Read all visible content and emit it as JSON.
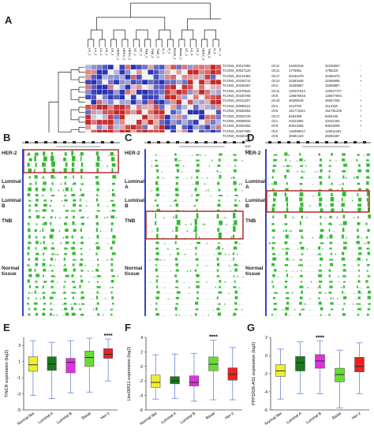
{
  "panels": {
    "A": "A",
    "B": "B",
    "C": "C",
    "D": "D",
    "E": "E",
    "F": "F",
    "G": "G"
  },
  "heatmap": {
    "column_labels": [
      "LA_1",
      "LA_2",
      "LA_3",
      "LB_1",
      "LB_2",
      "HER2_1",
      "HER2_2",
      "HER2_3",
      "NT_1",
      "NT_2",
      "TNB_1",
      "TNB_2",
      "TNB_3",
      "N_1",
      "N_2",
      "Basal_1",
      "Basal_2",
      "NT_3",
      "LA_4",
      "LB_3",
      "HER2_4",
      "TNB_4",
      "N_3",
      "NT_4",
      "LB_4",
      "HER2_5",
      "LA_5",
      "TNB_5",
      "N_4",
      "N_5"
    ],
    "rows": [
      {
        "id": "TCONS_00017650",
        "chr": "chr11",
        "start": "31026316",
        "end": "31030667",
        "strand": "-"
      },
      {
        "id": "TCONS_00027120",
        "chr": "chr11",
        "start": "1775961",
        "end": "1795220",
        "strand": "-"
      },
      {
        "id": "TCONS_00142481",
        "chr": "chr17",
        "start": "40432479",
        "end": "40450470",
        "strand": "+"
      },
      {
        "id": "TCONS_00236714",
        "chr": "chr12",
        "start": "32363446",
        "end": "32365695",
        "strand": "+"
      },
      {
        "id": "TCONS_00248467",
        "chr": "chr4",
        "start": "15295897",
        "end": "15309887",
        "strand": "-"
      },
      {
        "id": "TCONS_00278534",
        "chr": "chr11",
        "start": "120027514",
        "end": "120027727",
        "strand": "-"
      },
      {
        "id": "TCONS_00340765",
        "chr": "chr6",
        "start": "126675916",
        "end": "126677684",
        "strand": "-"
      },
      {
        "id": "TCONS_00411207",
        "chr": "chr10",
        "start": "46305018",
        "end": "46307406",
        "strand": "+"
      },
      {
        "id": "TCONS_00068110",
        "chr": "chr1",
        "start": "3110700",
        "end": "3113150",
        "strand": "+"
      },
      {
        "id": "TCONS_00348252",
        "chr": "chr6",
        "start": "151773421",
        "end": "151791236",
        "strand": "+"
      },
      {
        "id": "TCONS_00053725",
        "chr": "chr17",
        "start": "8462399",
        "end": "8484165",
        "strand": "+"
      },
      {
        "id": "TCONS_00098033",
        "chr": "chr1",
        "start": "43421894",
        "end": "43431264",
        "strand": "+"
      },
      {
        "id": "TCONS_00282562",
        "chr": "chr9",
        "start": "80913256",
        "end": "80916009",
        "strand": "+"
      },
      {
        "id": "TCONS_00347080",
        "chr": "chr2",
        "start": "142999017",
        "end": "143011281",
        "strand": "-"
      },
      {
        "id": "TCONS_00320480",
        "chr": "chr8",
        "start": "28381443",
        "end": "28392487",
        "strand": "-"
      },
      {
        "id": "TCONS_00187088",
        "chr": "chr17",
        "start": "66768601",
        "end": "66777012",
        "strand": "+"
      },
      {
        "id": "TCONS_00426413",
        "chr": "chr13",
        "start": "116579787",
        "end": "116583161",
        "strand": "+"
      },
      {
        "id": "TCONS_00331616",
        "chr": "chr2",
        "start": "170857967",
        "end": "170863123",
        "strand": "-"
      }
    ],
    "colors": {
      "high": "#cc2020",
      "low": "#2030b0",
      "mid": "#f0f0f0"
    }
  },
  "tracks": {
    "B": {
      "groups": [
        "HER-2",
        "Luminal\nA",
        "Luminal\nB",
        "TNB",
        "Normal\ntissue"
      ],
      "highlight": "HER-2"
    },
    "C": {
      "groups": [
        "HER-2",
        "Luminal\nA",
        "Luminal\nB",
        "TNB",
        "Normal\ntissue"
      ],
      "highlight": "TNB"
    },
    "D": {
      "groups": [
        "HER-2",
        "Luminal\nA",
        "Luminal\nB",
        "TNB",
        "Normal\ntissue"
      ],
      "highlight": "Luminal B"
    },
    "colors": {
      "signal": "#33bb33",
      "highlight_box": "#b02020",
      "sidebar": "#3344cc"
    }
  },
  "chart_data": [
    {
      "type": "box",
      "ylabel": "TINCR expression (log2)",
      "categories": [
        "Normal like",
        "Luminal A",
        "Luminal B",
        "Basal",
        "Her-2"
      ],
      "ylim": [
        -5,
        4
      ],
      "yticks": [
        -5,
        -3,
        -1,
        1,
        3
      ],
      "significance": {
        "category": "Her-2",
        "label": "****"
      },
      "colors": [
        "#eeee33",
        "#1a7a1a",
        "#dd33dd",
        "#66dd33",
        "#ee2222"
      ],
      "series": [
        {
          "name": "Normal like",
          "min": -3.2,
          "q1": -0.2,
          "median": 0.6,
          "q3": 1.6,
          "max": 3.6
        },
        {
          "name": "Luminal A",
          "min": -3.6,
          "q1": -0.1,
          "median": 0.7,
          "q3": 1.6,
          "max": 3.4
        },
        {
          "name": "Luminal B",
          "min": -2.9,
          "q1": -0.4,
          "median": 0.9,
          "q3": 1.4,
          "max": 3.6
        },
        {
          "name": "Basal",
          "min": -2.8,
          "q1": 0.4,
          "median": 1.5,
          "q3": 2.3,
          "max": 3.9
        },
        {
          "name": "Her-2",
          "min": -1.4,
          "q1": 1.4,
          "median": 1.9,
          "q3": 2.6,
          "max": 3.8
        }
      ]
    },
    {
      "type": "box",
      "ylabel": "Linc00511 expression (log2)",
      "categories": [
        "Normal like",
        "Luminal A",
        "Luminal B",
        "Basal",
        "Her-2"
      ],
      "ylim": [
        -6,
        4
      ],
      "yticks": [
        -6,
        -4,
        -2,
        0,
        2,
        4
      ],
      "significance": {
        "category": "Basal",
        "label": "****"
      },
      "colors": [
        "#eeee33",
        "#1a7a1a",
        "#dd33dd",
        "#66dd33",
        "#ee2222"
      ],
      "series": [
        {
          "name": "Normal like",
          "min": -4.5,
          "q1": -2.9,
          "median": -2.2,
          "q3": -1.2,
          "max": 1.6
        },
        {
          "name": "Luminal A",
          "min": -4.4,
          "q1": -2.4,
          "median": -2.0,
          "q3": -1.4,
          "max": 1.7
        },
        {
          "name": "Luminal B",
          "min": -4.8,
          "q1": -2.7,
          "median": -2.2,
          "q3": -1.3,
          "max": 1.8
        },
        {
          "name": "Basal",
          "min": -4.6,
          "q1": -0.6,
          "median": 0.3,
          "q3": 1.3,
          "max": 3.6
        },
        {
          "name": "Her-2",
          "min": -4.6,
          "q1": -1.9,
          "median": -1.1,
          "q3": -0.2,
          "max": 2.6
        }
      ]
    },
    {
      "type": "box",
      "ylabel": "PPP1R26-AS1 expression (log2)",
      "categories": [
        "Normal like",
        "Luminal A",
        "Luminal B",
        "Basal",
        "Her-2"
      ],
      "ylim": [
        -6,
        2
      ],
      "yticks": [
        -6,
        -4,
        -2,
        0,
        2
      ],
      "significance": {
        "category": "Luminal B",
        "label": "****"
      },
      "colors": [
        "#eeee33",
        "#1a7a1a",
        "#dd33dd",
        "#66dd33",
        "#ee2222"
      ],
      "series": [
        {
          "name": "Normal like",
          "min": -4.8,
          "q1": -2.3,
          "median": -1.7,
          "q3": -1.0,
          "max": 0.7
        },
        {
          "name": "Luminal A",
          "min": -4.2,
          "q1": -1.7,
          "median": -0.8,
          "q3": -0.1,
          "max": 1.5
        },
        {
          "name": "Luminal B",
          "min": -4.2,
          "q1": -1.4,
          "median": -0.6,
          "q3": 0.1,
          "max": 1.6
        },
        {
          "name": "Basal",
          "min": -5.8,
          "q1": -2.9,
          "median": -2.1,
          "q3": -1.4,
          "max": 0.6
        },
        {
          "name": "Her-2",
          "min": -4.2,
          "q1": -1.8,
          "median": -1.2,
          "q3": -0.2,
          "max": 1.4
        }
      ]
    }
  ]
}
